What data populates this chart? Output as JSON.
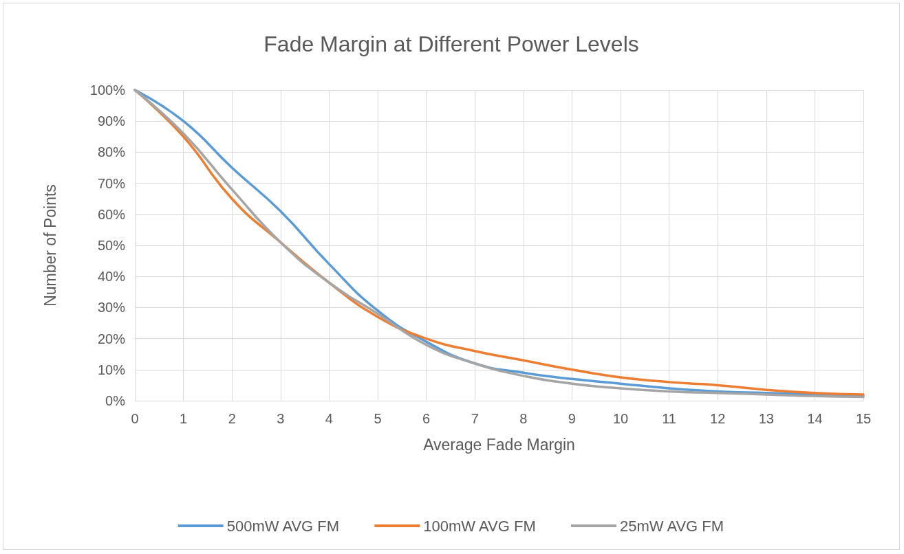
{
  "chart_data": {
    "type": "line",
    "title": "Fade Margin at Different Power Levels",
    "xlabel": "Average Fade Margin",
    "ylabel": "Number of Points",
    "x": [
      0,
      1,
      2,
      3,
      4,
      5,
      6,
      7,
      8,
      9,
      10,
      11,
      12,
      13,
      14,
      15
    ],
    "series": [
      {
        "name": "500mW AVG FM",
        "color": "#5b9bd5",
        "values": [
          100,
          90,
          75,
          61,
          44,
          29,
          19,
          12,
          9,
          7,
          5.5,
          4,
          3,
          2.5,
          2,
          1.5
        ]
      },
      {
        "name": "100mW AVG FM",
        "color": "#ed7d31",
        "values": [
          100,
          85,
          65,
          51,
          38,
          27,
          20,
          16,
          13,
          10,
          7.5,
          6,
          5,
          3.5,
          2.5,
          2
        ]
      },
      {
        "name": "25mW AVG FM",
        "color": "#a5a5a5",
        "values": [
          100,
          86,
          68,
          51,
          38,
          28,
          18,
          12,
          8,
          5.5,
          4,
          3,
          2.5,
          2,
          1.5,
          1.2
        ]
      }
    ],
    "xlim": [
      0,
      15
    ],
    "xticks": [
      0,
      1,
      2,
      3,
      4,
      5,
      6,
      7,
      8,
      9,
      10,
      11,
      12,
      13,
      14,
      15
    ],
    "ylim": [
      0,
      100
    ],
    "yticks": [
      {
        "value": 0,
        "label": "0%"
      },
      {
        "value": 10,
        "label": "10%"
      },
      {
        "value": 20,
        "label": "20%"
      },
      {
        "value": 30,
        "label": "30%"
      },
      {
        "value": 40,
        "label": "40%"
      },
      {
        "value": 50,
        "label": "50%"
      },
      {
        "value": 60,
        "label": "60%"
      },
      {
        "value": 70,
        "label": "70%"
      },
      {
        "value": 80,
        "label": "80%"
      },
      {
        "value": 90,
        "label": "90%"
      },
      {
        "value": 100,
        "label": "100%"
      }
    ],
    "grid": true,
    "legend": "bottom",
    "marker": "none",
    "line_style": "solid"
  }
}
